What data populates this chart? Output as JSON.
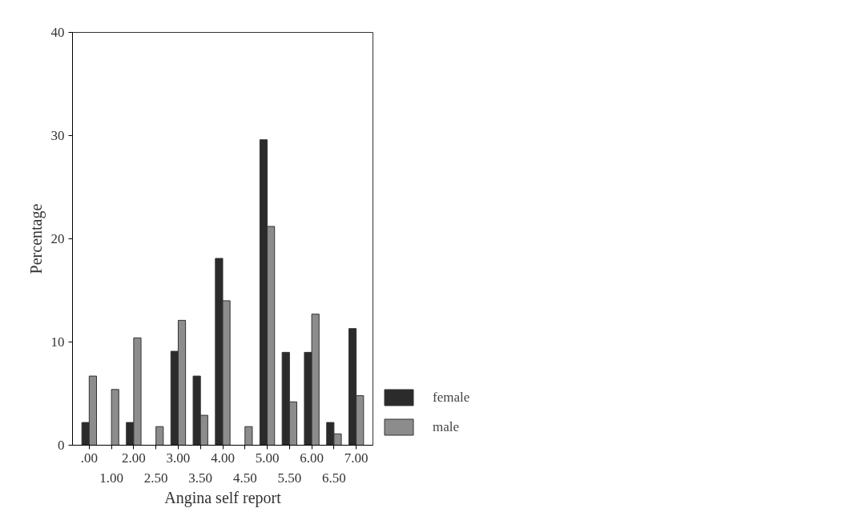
{
  "chart_data": {
    "type": "bar",
    "xlabel": "Angina self report",
    "ylabel": "Percentage",
    "categories": [
      ".00",
      "1.00",
      "2.00",
      "2.50",
      "3.00",
      "3.50",
      "4.00",
      "4.50",
      "5.00",
      "5.50",
      "6.00",
      "6.50",
      "7.00"
    ],
    "series": [
      {
        "name": "female",
        "color": "#2b2b2b",
        "values": [
          2.2,
          0,
          2.2,
          0,
          9.1,
          6.7,
          18.1,
          0,
          29.6,
          9.0,
          9.0,
          2.2,
          11.3
        ]
      },
      {
        "name": "male",
        "color": "#8c8c8c",
        "values": [
          6.7,
          5.4,
          10.4,
          1.8,
          12.1,
          2.9,
          14.0,
          1.8,
          21.2,
          4.2,
          12.7,
          1.1,
          4.8
        ]
      }
    ],
    "ylim": [
      0,
      40
    ],
    "yticks": [
      0,
      10,
      20,
      30,
      40
    ],
    "grid": false,
    "legend": "bottom right"
  }
}
